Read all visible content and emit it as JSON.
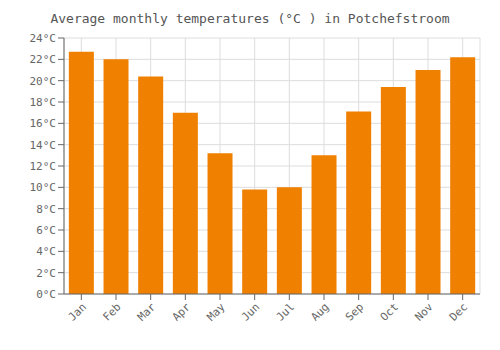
{
  "chart_data": {
    "type": "bar",
    "title": "Average monthly temperatures (°C ) in Potchefstroom",
    "categories": [
      "Jan",
      "Feb",
      "Mar",
      "Apr",
      "May",
      "Jun",
      "Jul",
      "Aug",
      "Sep",
      "Oct",
      "Nov",
      "Dec"
    ],
    "values": [
      22.7,
      22.0,
      20.4,
      17.0,
      13.2,
      9.8,
      10.0,
      13.0,
      17.1,
      19.4,
      21.0,
      22.2
    ],
    "color": "#F08000",
    "ylim": [
      0,
      24
    ],
    "yticks": [
      {
        "value": 0,
        "label": "0°C"
      },
      {
        "value": 2,
        "label": "2°C"
      },
      {
        "value": 4,
        "label": "4°C"
      },
      {
        "value": 6,
        "label": "6°C"
      },
      {
        "value": 8,
        "label": "8°C"
      },
      {
        "value": 10,
        "label": "10°C"
      },
      {
        "value": 12,
        "label": "12°C"
      },
      {
        "value": 14,
        "label": "14°C"
      },
      {
        "value": 16,
        "label": "16°C"
      },
      {
        "value": 18,
        "label": "18°C"
      },
      {
        "value": 20,
        "label": "20°C"
      },
      {
        "value": 22,
        "label": "22°C"
      },
      {
        "value": 24,
        "label": "24°C"
      }
    ],
    "grid": true
  }
}
